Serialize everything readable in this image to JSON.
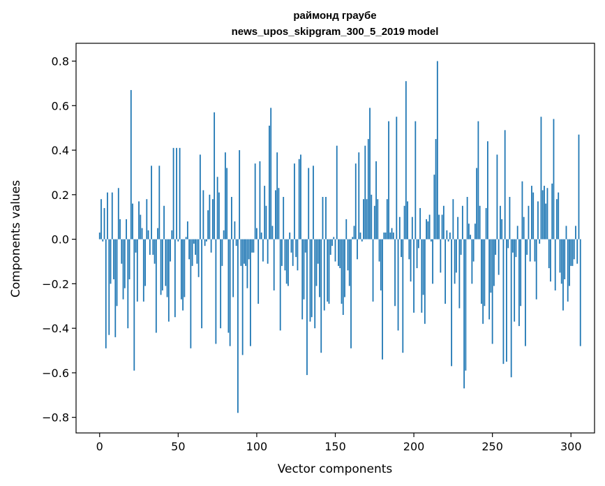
{
  "chart_data": {
    "type": "bar",
    "title_line1": "раймонд граубе",
    "title_line2": "news_upos_skipgram_300_5_2019 model",
    "xlabel": "Vector components",
    "ylabel": "Components values",
    "xlim": [
      -15,
      315
    ],
    "ylim": [
      -0.87,
      0.88
    ],
    "xticks": [
      0,
      50,
      100,
      150,
      200,
      250,
      300
    ],
    "xtick_labels": [
      "0",
      "50",
      "100",
      "150",
      "200",
      "250",
      "300"
    ],
    "yticks": [
      -0.8,
      -0.6,
      -0.4,
      -0.2,
      0.0,
      0.2,
      0.4,
      0.6,
      0.8
    ],
    "ytick_labels": [
      "−0.8",
      "−0.6",
      "−0.4",
      "−0.2",
      "0.0",
      "0.2",
      "0.4",
      "0.6",
      "0.8"
    ],
    "grid": false,
    "bar_color": "#1f77b4",
    "values": [
      0.03,
      0.18,
      -0.01,
      0.14,
      -0.49,
      0.21,
      -0.43,
      -0.2,
      0.21,
      -0.18,
      -0.44,
      -0.3,
      0.23,
      0.09,
      -0.11,
      -0.27,
      -0.22,
      0.09,
      -0.4,
      -0.18,
      0.67,
      0.16,
      -0.59,
      -0.06,
      -0.28,
      0.17,
      0.11,
      0.05,
      -0.28,
      -0.21,
      0.18,
      0.04,
      -0.07,
      0.33,
      -0.07,
      -0.11,
      -0.42,
      0.05,
      0.33,
      -0.25,
      -0.23,
      0.15,
      -0.21,
      -0.26,
      -0.37,
      -0.1,
      0.04,
      0.41,
      -0.35,
      0.41,
      -0.01,
      0.41,
      -0.27,
      -0.32,
      -0.26,
      0.01,
      0.08,
      -0.09,
      -0.49,
      -0.12,
      -0.02,
      -0.07,
      -0.11,
      -0.17,
      0.38,
      -0.4,
      0.22,
      -0.03,
      -0.01,
      0.13,
      0.2,
      -0.06,
      0.18,
      0.57,
      -0.47,
      0.28,
      0.21,
      -0.4,
      -0.12,
      0.04,
      0.39,
      0.32,
      -0.42,
      -0.48,
      0.19,
      -0.26,
      0.08,
      -0.03,
      -0.78,
      0.4,
      -0.12,
      -0.52,
      -0.11,
      -0.12,
      -0.22,
      -0.09,
      -0.48,
      -0.06,
      -0.06,
      0.34,
      0.05,
      -0.29,
      0.35,
      0.03,
      -0.1,
      0.24,
      0.15,
      -0.11,
      0.51,
      0.59,
      0.06,
      -0.23,
      0.22,
      0.39,
      0.23,
      -0.41,
      -0.12,
      0.19,
      -0.14,
      -0.2,
      -0.21,
      0.03,
      -0.06,
      -0.12,
      0.34,
      -0.08,
      -0.14,
      0.36,
      0.38,
      -0.36,
      -0.27,
      -0.06,
      -0.61,
      0.32,
      -0.37,
      -0.35,
      0.33,
      -0.4,
      -0.21,
      -0.11,
      -0.26,
      -0.51,
      0.19,
      -0.32,
      0.19,
      -0.28,
      -0.29,
      -0.07,
      -0.03,
      0.01,
      -0.1,
      0.42,
      -0.12,
      -0.13,
      -0.29,
      -0.34,
      -0.26,
      0.09,
      -0.14,
      -0.21,
      -0.49,
      0.01,
      0.06,
      0.34,
      -0.09,
      0.39,
      0.03,
      -0.01,
      0.18,
      0.42,
      0.18,
      0.45,
      0.59,
      0.2,
      -0.28,
      0.15,
      0.35,
      0.18,
      -0.1,
      -0.23,
      -0.54,
      0.03,
      0.03,
      0.18,
      0.53,
      0.03,
      0.05,
      0.03,
      -0.3,
      0.55,
      -0.41,
      0.1,
      -0.08,
      -0.51,
      0.15,
      0.71,
      0.17,
      -0.09,
      -0.19,
      0.1,
      -0.33,
      0.53,
      -0.13,
      -0.04,
      0.14,
      -0.33,
      -0.25,
      -0.38,
      0.09,
      0.08,
      0.11,
      -0.01,
      -0.2,
      0.29,
      0.45,
      0.8,
      0.11,
      -0.15,
      0.11,
      0.15,
      -0.29,
      0.04,
      -0.01,
      0.03,
      -0.57,
      0.18,
      -0.2,
      -0.15,
      0.1,
      -0.31,
      -0.07,
      0.15,
      -0.67,
      -0.59,
      0.19,
      0.07,
      0.02,
      -0.2,
      -0.1,
      0.07,
      0.32,
      0.53,
      0.15,
      -0.29,
      -0.38,
      -0.3,
      0.14,
      0.44,
      -0.36,
      -0.24,
      -0.47,
      -0.21,
      -0.07,
      0.38,
      -0.16,
      0.15,
      0.09,
      -0.56,
      0.49,
      -0.55,
      -0.04,
      0.19,
      -0.62,
      -0.06,
      -0.37,
      -0.08,
      0.06,
      -0.39,
      -0.3,
      0.26,
      0.1,
      -0.48,
      -0.07,
      0.15,
      -0.1,
      0.24,
      0.21,
      -0.1,
      -0.27,
      0.17,
      -0.02,
      0.55,
      0.22,
      0.24,
      0.16,
      0.23,
      -0.13,
      -0.19,
      0.25,
      0.54,
      -0.23,
      0.18,
      0.21,
      -0.15,
      -0.2,
      -0.32,
      -0.18,
      0.06,
      -0.28,
      -0.21,
      -0.12,
      -0.12,
      -0.09,
      0.06,
      -0.11,
      0.47,
      -0.48
    ]
  }
}
